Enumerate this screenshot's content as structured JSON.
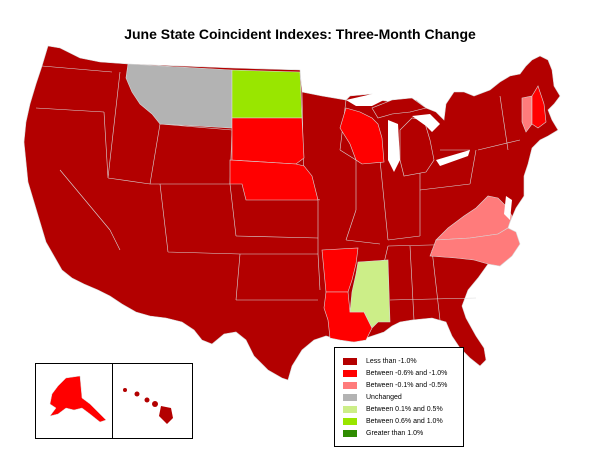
{
  "title": "June State Coincident Indexes: Three-Month Change",
  "colors": {
    "less_than_neg1": "#b30000",
    "neg06_to_neg1": "#ff0000",
    "neg01_to_neg05": "#ff7b7b",
    "unchanged": "#b3b3b3",
    "pos01_to_05": "#ccee88",
    "pos06_to_1": "#99e600",
    "greater_than_1": "#2e8b00"
  },
  "legend": [
    {
      "label": "Less than -1.0%",
      "color": "#b30000"
    },
    {
      "label": "Between -0.6% and -1.0%",
      "color": "#ff0000"
    },
    {
      "label": "Between -0.1% and -0.5%",
      "color": "#ff7b7b"
    },
    {
      "label": "Unchanged",
      "color": "#b3b3b3"
    },
    {
      "label": "Between 0.1% and 0.5%",
      "color": "#ccee88"
    },
    {
      "label": "Between 0.6% and 1.0%",
      "color": "#99e600"
    },
    {
      "label": "Greater than 1.0%",
      "color": "#2e8b00"
    }
  ],
  "states": {
    "Montana": "Unchanged",
    "North Dakota": "Between 0.6% and 1.0%",
    "South Dakota": "Between -0.6% and -1.0%",
    "Nebraska": "Between -0.6% and -1.0%",
    "Wisconsin": "Between -0.6% and -1.0%",
    "Arkansas": "Between -0.6% and -1.0%",
    "Louisiana": "Between -0.6% and -1.0%",
    "New Hampshire": "Between -0.6% and -1.0%",
    "Virginia": "Between -0.1% and -0.5%",
    "North Carolina": "Between -0.1% and -0.5%",
    "Vermont": "Between -0.1% and -0.5%",
    "Mississippi": "Between 0.1% and 0.5%",
    "Alaska": "Between -0.6% and -1.0%",
    "Hawaii": "Less than -1.0%",
    "all_other_states": "Less than -1.0%"
  }
}
